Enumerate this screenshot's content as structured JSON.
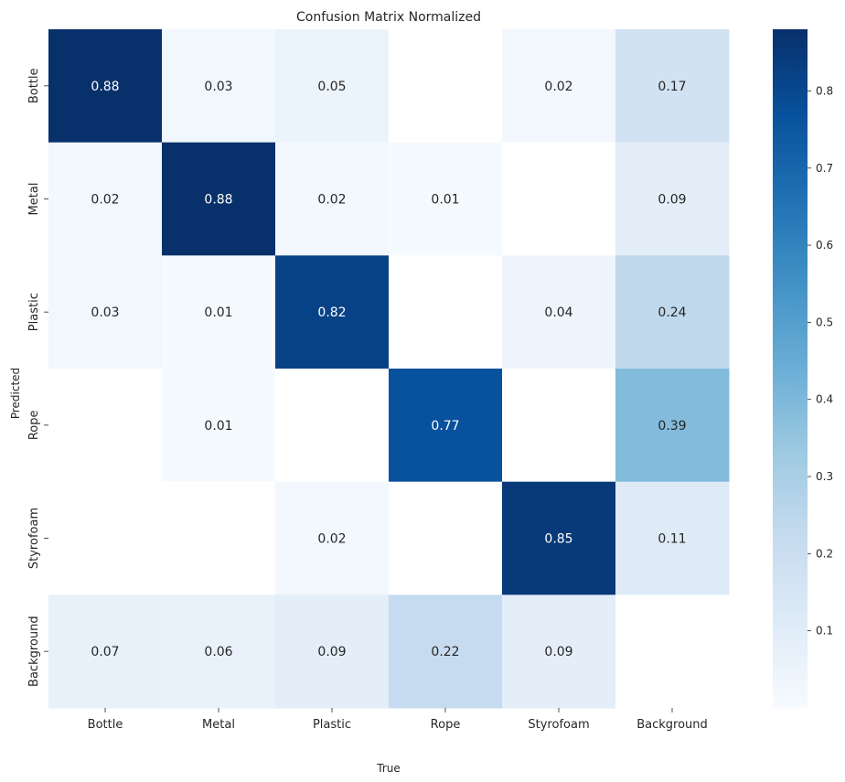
{
  "chart_data": {
    "type": "heatmap",
    "title": "Confusion Matrix Normalized",
    "xlabel": "True",
    "ylabel": "Predicted",
    "x_categories": [
      "Bottle",
      "Metal",
      "Plastic",
      "Rope",
      "Styrofoam",
      "Background"
    ],
    "y_categories": [
      "Bottle",
      "Metal",
      "Plastic",
      "Rope",
      "Styrofoam",
      "Background"
    ],
    "values": [
      [
        0.88,
        0.03,
        0.05,
        null,
        0.02,
        0.17
      ],
      [
        0.02,
        0.88,
        0.02,
        0.01,
        null,
        0.09
      ],
      [
        0.03,
        0.01,
        0.82,
        null,
        0.04,
        0.24
      ],
      [
        null,
        0.01,
        null,
        0.77,
        null,
        0.39
      ],
      [
        null,
        null,
        0.02,
        null,
        0.85,
        0.11
      ],
      [
        0.07,
        0.06,
        0.09,
        0.22,
        0.09,
        null
      ]
    ],
    "value_labels": [
      [
        "0.88",
        "0.03",
        "0.05",
        "",
        "0.02",
        "0.17"
      ],
      [
        "0.02",
        "0.88",
        "0.02",
        "0.01",
        "",
        "0.09"
      ],
      [
        "0.03",
        "0.01",
        "0.82",
        "",
        "0.04",
        "0.24"
      ],
      [
        "",
        "0.01",
        "",
        "0.77",
        "",
        "0.39"
      ],
      [
        "",
        "",
        "0.02",
        "",
        "0.85",
        "0.11"
      ],
      [
        "0.07",
        "0.06",
        "0.09",
        "0.22",
        "0.09",
        ""
      ]
    ],
    "colormap": "Blues",
    "colorbar": {
      "vmin": 0.0,
      "vmax": 0.88,
      "ticks": [
        0.1,
        0.2,
        0.3,
        0.4,
        0.5,
        0.6,
        0.7,
        0.8
      ],
      "tick_labels": [
        "0.1",
        "0.2",
        "0.3",
        "0.4",
        "0.5",
        "0.6",
        "0.7",
        "0.8"
      ]
    },
    "colors": {
      "low": "#f7fbff",
      "high": "#08306b",
      "text_dark": "#262626",
      "text_light": "#ffffff"
    }
  }
}
